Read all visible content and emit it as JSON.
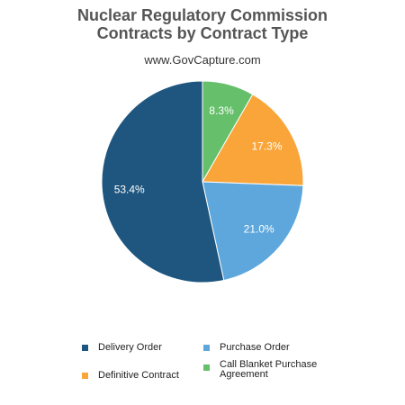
{
  "title_line1": "Nuclear Regulatory Commission",
  "title_line2": "Contracts by Contract Type",
  "subtitle": "www.GovCapture.com",
  "chart_data": {
    "type": "pie",
    "title": "Nuclear Regulatory Commission Contracts by Contract Type",
    "subtitle": "www.GovCapture.com",
    "slices": [
      {
        "label": "Call Blanket Purchase Agreement",
        "value": 8.3,
        "display": "8.3%",
        "color": "#66bf6b"
      },
      {
        "label": "Definitive Contract",
        "value": 17.3,
        "display": "17.3%",
        "color": "#f9a53a"
      },
      {
        "label": "Purchase Order",
        "value": 21.0,
        "display": "21.0%",
        "color": "#5ea7dc"
      },
      {
        "label": "Delivery Order",
        "value": 53.4,
        "display": "53.4%",
        "color": "#1f567f"
      }
    ],
    "legend": [
      {
        "label": "Delivery Order",
        "color": "#1f567f"
      },
      {
        "label": "Purchase Order",
        "color": "#5ea7dc"
      },
      {
        "label": "Definitive Contract",
        "color": "#f9a53a"
      },
      {
        "label": "Call Blanket Purchase Agreement",
        "color": "#66bf6b"
      }
    ],
    "legend_position": "bottom"
  }
}
